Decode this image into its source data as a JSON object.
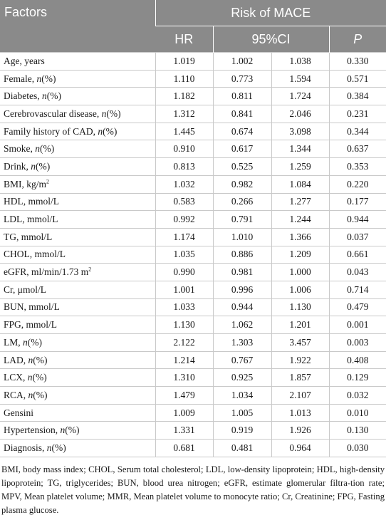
{
  "header": {
    "factors": "Factors",
    "group": "Risk of MACE",
    "hr": "HR",
    "ci": "95%CI",
    "p": "P"
  },
  "rows": [
    {
      "pre": "Age, years",
      "it": "",
      "post": "",
      "sup": "",
      "hr": "1.019",
      "lo": "1.002",
      "hi": "1.038",
      "p": "0.330"
    },
    {
      "pre": "Female, ",
      "it": "n",
      "post": "(%)",
      "sup": "",
      "hr": "1.110",
      "lo": "0.773",
      "hi": "1.594",
      "p": "0.571"
    },
    {
      "pre": "Diabetes, ",
      "it": "n",
      "post": "(%)",
      "sup": "",
      "hr": "1.182",
      "lo": "0.811",
      "hi": "1.724",
      "p": "0.384"
    },
    {
      "pre": "Cerebrovascular disease, ",
      "it": "n",
      "post": "(%)",
      "sup": "",
      "hr": "1.312",
      "lo": "0.841",
      "hi": "2.046",
      "p": "0.231"
    },
    {
      "pre": "Family history of CAD, ",
      "it": "n",
      "post": "(%)",
      "sup": "",
      "hr": "1.445",
      "lo": "0.674",
      "hi": "3.098",
      "p": "0.344"
    },
    {
      "pre": "Smoke, ",
      "it": "n",
      "post": "(%)",
      "sup": "",
      "hr": "0.910",
      "lo": "0.617",
      "hi": "1.344",
      "p": "0.637"
    },
    {
      "pre": "Drink, ",
      "it": "n",
      "post": "(%)",
      "sup": "",
      "hr": "0.813",
      "lo": "0.525",
      "hi": "1.259",
      "p": "0.353"
    },
    {
      "pre": "BMI, kg/m",
      "it": "",
      "post": "",
      "sup": "2",
      "hr": "1.032",
      "lo": "0.982",
      "hi": "1.084",
      "p": "0.220"
    },
    {
      "pre": "HDL, mmol/L",
      "it": "",
      "post": "",
      "sup": "",
      "hr": "0.583",
      "lo": "0.266",
      "hi": "1.277",
      "p": "0.177"
    },
    {
      "pre": "LDL, mmol/L",
      "it": "",
      "post": "",
      "sup": "",
      "hr": "0.992",
      "lo": "0.791",
      "hi": "1.244",
      "p": "0.944"
    },
    {
      "pre": "TG, mmol/L",
      "it": "",
      "post": "",
      "sup": "",
      "hr": "1.174",
      "lo": "1.010",
      "hi": "1.366",
      "p": "0.037"
    },
    {
      "pre": "CHOL, mmol/L",
      "it": "",
      "post": "",
      "sup": "",
      "hr": "1.035",
      "lo": "0.886",
      "hi": "1.209",
      "p": "0.661"
    },
    {
      "pre": "eGFR, ml/min/1.73 m",
      "it": "",
      "post": "",
      "sup": "2",
      "hr": "0.990",
      "lo": "0.981",
      "hi": "1.000",
      "p": "0.043"
    },
    {
      "pre": "Cr, μmol/L",
      "it": "",
      "post": "",
      "sup": "",
      "hr": "1.001",
      "lo": "0.996",
      "hi": "1.006",
      "p": "0.714"
    },
    {
      "pre": "BUN, mmol/L",
      "it": "",
      "post": "",
      "sup": "",
      "hr": "1.033",
      "lo": "0.944",
      "hi": "1.130",
      "p": "0.479"
    },
    {
      "pre": "FPG, mmol/L",
      "it": "",
      "post": "",
      "sup": "",
      "hr": "1.130",
      "lo": "1.062",
      "hi": "1.201",
      "p": "0.001"
    },
    {
      "pre": "LM, ",
      "it": "n",
      "post": "(%)",
      "sup": "",
      "hr": "2.122",
      "lo": "1.303",
      "hi": "3.457",
      "p": "0.003"
    },
    {
      "pre": "LAD, ",
      "it": "n",
      "post": "(%)",
      "sup": "",
      "hr": "1.214",
      "lo": "0.767",
      "hi": "1.922",
      "p": "0.408"
    },
    {
      "pre": "LCX, ",
      "it": "n",
      "post": "(%)",
      "sup": "",
      "hr": "1.310",
      "lo": "0.925",
      "hi": "1.857",
      "p": "0.129"
    },
    {
      "pre": "RCA, ",
      "it": "n",
      "post": "(%)",
      "sup": "",
      "hr": "1.479",
      "lo": "1.034",
      "hi": "2.107",
      "p": "0.032"
    },
    {
      "pre": "Gensini",
      "it": "",
      "post": "",
      "sup": "",
      "hr": "1.009",
      "lo": "1.005",
      "hi": "1.013",
      "p": "0.010"
    },
    {
      "pre": "Hypertension, ",
      "it": "n",
      "post": "(%)",
      "sup": "",
      "hr": "1.331",
      "lo": "0.919",
      "hi": "1.926",
      "p": "0.130"
    },
    {
      "pre": "Diagnosis, ",
      "it": "n",
      "post": "(%)",
      "sup": "",
      "hr": "0.681",
      "lo": "0.481",
      "hi": "0.964",
      "p": "0.030"
    }
  ],
  "footnote": "BMI, body mass index; CHOL, Serum total cholesterol; LDL, low-density lipoprotein; HDL, high-density lipoprotein; TG, triglycerides; BUN, blood urea nitrogen; eGFR, estimate glomerular filtra-tion rate; MPV, Mean platelet volume; MMR, Mean platelet volume to monocyte ratio; Cr, Creatinine; FPG, Fasting plasma glucose."
}
